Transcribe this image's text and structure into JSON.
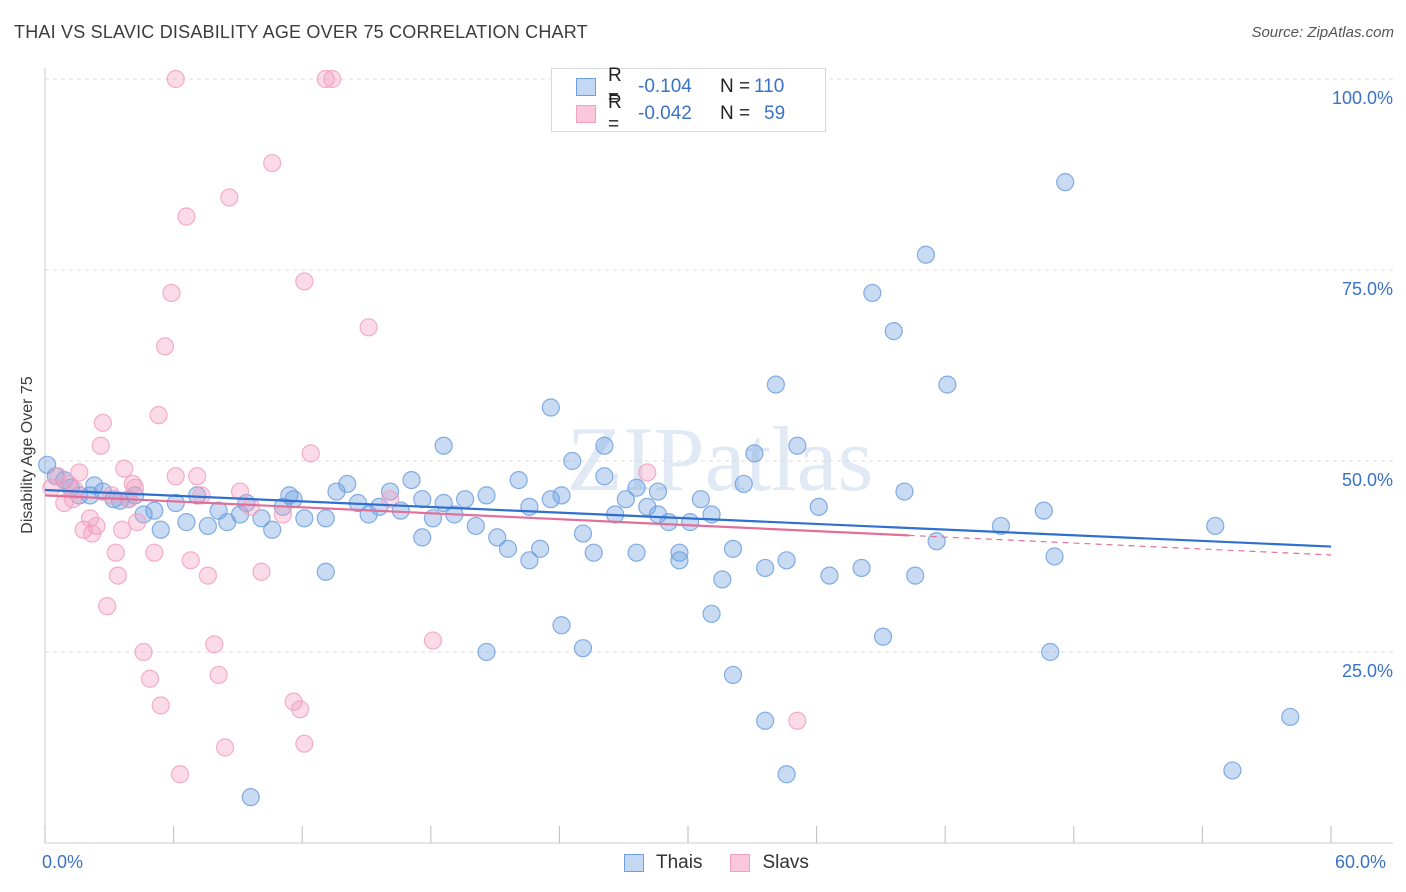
{
  "title": "THAI VS SLAVIC DISABILITY AGE OVER 75 CORRELATION CHART",
  "source": "Source: ZipAtlas.com",
  "watermark": "ZIPatlas",
  "legend_top": {
    "rows": [
      {
        "r_label": "R =",
        "r_value": "-0.104",
        "n_label": "N =",
        "n_value": "110"
      },
      {
        "r_label": "R =",
        "r_value": "-0.042",
        "n_label": "N =",
        "n_value": "59"
      }
    ]
  },
  "chart_data": {
    "type": "scatter",
    "title": "THAI VS SLAVIC DISABILITY AGE OVER 75 CORRELATION CHART",
    "xlabel": "",
    "ylabel": "Disability Age Over 75",
    "xlim": [
      0,
      60
    ],
    "ylim": [
      0,
      100
    ],
    "x_tick_labels": [
      "0.0%",
      "60.0%"
    ],
    "y_tick_labels": [
      "25.0%",
      "50.0%",
      "75.0%",
      "100.0%"
    ],
    "y_ticks": [
      25,
      50,
      75,
      100
    ],
    "grid": true,
    "legend_position": "bottom",
    "colors": {
      "Thais": "#6fa0e0",
      "Slavs": "#f2a0bf",
      "thais_line": "#2f6fd0",
      "slavs_line": "#e0709a"
    },
    "series": [
      {
        "name": "Thais",
        "trend": {
          "x": [
            0,
            60
          ],
          "y": [
            46.2,
            38.8
          ],
          "solid_until": 60
        },
        "points": [
          [
            0.1,
            49.5
          ],
          [
            0.5,
            48
          ],
          [
            0.9,
            47.5
          ],
          [
            1.2,
            46.5
          ],
          [
            1.6,
            45.5
          ],
          [
            2.1,
            45.5
          ],
          [
            2.3,
            46.8
          ],
          [
            2.7,
            46
          ],
          [
            3.2,
            45
          ],
          [
            3.5,
            44.8
          ],
          [
            3.9,
            45
          ],
          [
            4.2,
            45.5
          ],
          [
            4.6,
            43
          ],
          [
            5.1,
            43.5
          ],
          [
            5.4,
            41
          ],
          [
            6.1,
            44.5
          ],
          [
            6.6,
            42
          ],
          [
            7.1,
            45.5
          ],
          [
            7.6,
            41.5
          ],
          [
            8.1,
            43.5
          ],
          [
            8.5,
            42
          ],
          [
            9.1,
            43
          ],
          [
            9.4,
            44.5
          ],
          [
            10.1,
            42.5
          ],
          [
            10.6,
            41
          ],
          [
            11.1,
            44
          ],
          [
            11.4,
            45.5
          ],
          [
            11.6,
            45
          ],
          [
            12.1,
            42.5
          ],
          [
            13.1,
            42.5
          ],
          [
            13.6,
            46
          ],
          [
            14.1,
            47
          ],
          [
            14.6,
            44.5
          ],
          [
            15.1,
            43
          ],
          [
            15.6,
            44
          ],
          [
            16.1,
            46
          ],
          [
            16.6,
            43.5
          ],
          [
            17.1,
            47.5
          ],
          [
            17.6,
            45
          ],
          [
            18.1,
            42.5
          ],
          [
            18.6,
            44.5
          ],
          [
            19.1,
            43
          ],
          [
            19.6,
            45
          ],
          [
            20.1,
            41.5
          ],
          [
            20.6,
            45.5
          ],
          [
            21.1,
            40
          ],
          [
            21.6,
            38.5
          ],
          [
            22.1,
            47.5
          ],
          [
            22.6,
            44
          ],
          [
            23.1,
            38.5
          ],
          [
            23.6,
            45
          ],
          [
            24.1,
            45.5
          ],
          [
            24.6,
            50
          ],
          [
            25.1,
            40.5
          ],
          [
            25.6,
            38
          ],
          [
            26.1,
            48
          ],
          [
            26.6,
            43
          ],
          [
            27.1,
            45
          ],
          [
            27.6,
            46.5
          ],
          [
            28.1,
            44
          ],
          [
            28.6,
            43
          ],
          [
            29.1,
            42
          ],
          [
            29.6,
            38
          ],
          [
            30.1,
            42
          ],
          [
            30.6,
            45
          ],
          [
            31.1,
            43
          ],
          [
            31.6,
            34.5
          ],
          [
            32.1,
            38.5
          ],
          [
            32.6,
            47
          ],
          [
            33.1,
            51
          ],
          [
            33.6,
            36
          ],
          [
            34.1,
            60
          ],
          [
            34.6,
            37
          ],
          [
            35.1,
            52
          ],
          [
            36.1,
            44
          ],
          [
            36.6,
            35
          ],
          [
            38.1,
            36
          ],
          [
            38.6,
            72
          ],
          [
            39.1,
            27
          ],
          [
            39.6,
            67
          ],
          [
            40.1,
            46
          ],
          [
            40.6,
            35
          ],
          [
            41.1,
            77
          ],
          [
            41.6,
            39.5
          ],
          [
            42.1,
            60
          ],
          [
            9.6,
            6
          ],
          [
            13.1,
            35.5
          ],
          [
            18.6,
            52
          ],
          [
            17.6,
            40
          ],
          [
            20.6,
            25
          ],
          [
            22.6,
            37
          ],
          [
            23.6,
            57
          ],
          [
            24.1,
            28.5
          ],
          [
            25.1,
            25.5
          ],
          [
            26.1,
            52
          ],
          [
            27.6,
            38
          ],
          [
            28.6,
            46
          ],
          [
            29.6,
            37
          ],
          [
            31.1,
            30
          ],
          [
            32.1,
            22
          ],
          [
            33.6,
            16
          ],
          [
            34.6,
            9
          ],
          [
            44.6,
            41.5
          ],
          [
            46.6,
            43.5
          ],
          [
            47.6,
            86.5
          ],
          [
            47.1,
            37.5
          ],
          [
            46.9,
            25
          ],
          [
            54.6,
            41.5
          ],
          [
            55.4,
            9.5
          ],
          [
            58.1,
            16.5
          ]
        ]
      },
      {
        "name": "Slavs",
        "trend": {
          "x": [
            0,
            60
          ],
          "y": [
            45.5,
            37.7
          ],
          "solid_until": 40.3
        },
        "points": [
          [
            0.3,
            46.5
          ],
          [
            0.6,
            48
          ],
          [
            0.9,
            44.5
          ],
          [
            1.1,
            47
          ],
          [
            1.3,
            45
          ],
          [
            1.4,
            46.2
          ],
          [
            1.6,
            48.5
          ],
          [
            1.8,
            41
          ],
          [
            2.1,
            42.5
          ],
          [
            2.2,
            40.5
          ],
          [
            2.4,
            41.5
          ],
          [
            2.6,
            52
          ],
          [
            2.7,
            55
          ],
          [
            2.9,
            31
          ],
          [
            3.1,
            45.5
          ],
          [
            3.3,
            38
          ],
          [
            3.4,
            35
          ],
          [
            3.6,
            41
          ],
          [
            3.7,
            49
          ],
          [
            3.9,
            45
          ],
          [
            4.1,
            47
          ],
          [
            4.2,
            46.5
          ],
          [
            4.3,
            42
          ],
          [
            4.6,
            25
          ],
          [
            4.9,
            21.5
          ],
          [
            5.1,
            38
          ],
          [
            5.3,
            56
          ],
          [
            5.4,
            18
          ],
          [
            5.6,
            65
          ],
          [
            5.9,
            72
          ],
          [
            6.1,
            48
          ],
          [
            6.3,
            9
          ],
          [
            6.6,
            82
          ],
          [
            6.8,
            37
          ],
          [
            7.1,
            48
          ],
          [
            7.3,
            45.5
          ],
          [
            7.6,
            35
          ],
          [
            7.9,
            26
          ],
          [
            8.1,
            22
          ],
          [
            8.4,
            12.5
          ],
          [
            8.6,
            84.5
          ],
          [
            9.1,
            46
          ],
          [
            9.6,
            44
          ],
          [
            10.1,
            35.5
          ],
          [
            10.6,
            89
          ],
          [
            11.1,
            43
          ],
          [
            11.6,
            18.5
          ],
          [
            11.9,
            17.5
          ],
          [
            12.1,
            73.5
          ],
          [
            12.4,
            51
          ],
          [
            12.1,
            13
          ],
          [
            13.1,
            100
          ],
          [
            13.4,
            100
          ],
          [
            15.1,
            67.5
          ],
          [
            16.1,
            45
          ],
          [
            18.1,
            26.5
          ],
          [
            28.1,
            48.5
          ],
          [
            35.1,
            16
          ],
          [
            6.1,
            100
          ]
        ]
      }
    ]
  },
  "legend_bottom": {
    "items": [
      "Thais",
      "Slavs"
    ]
  }
}
